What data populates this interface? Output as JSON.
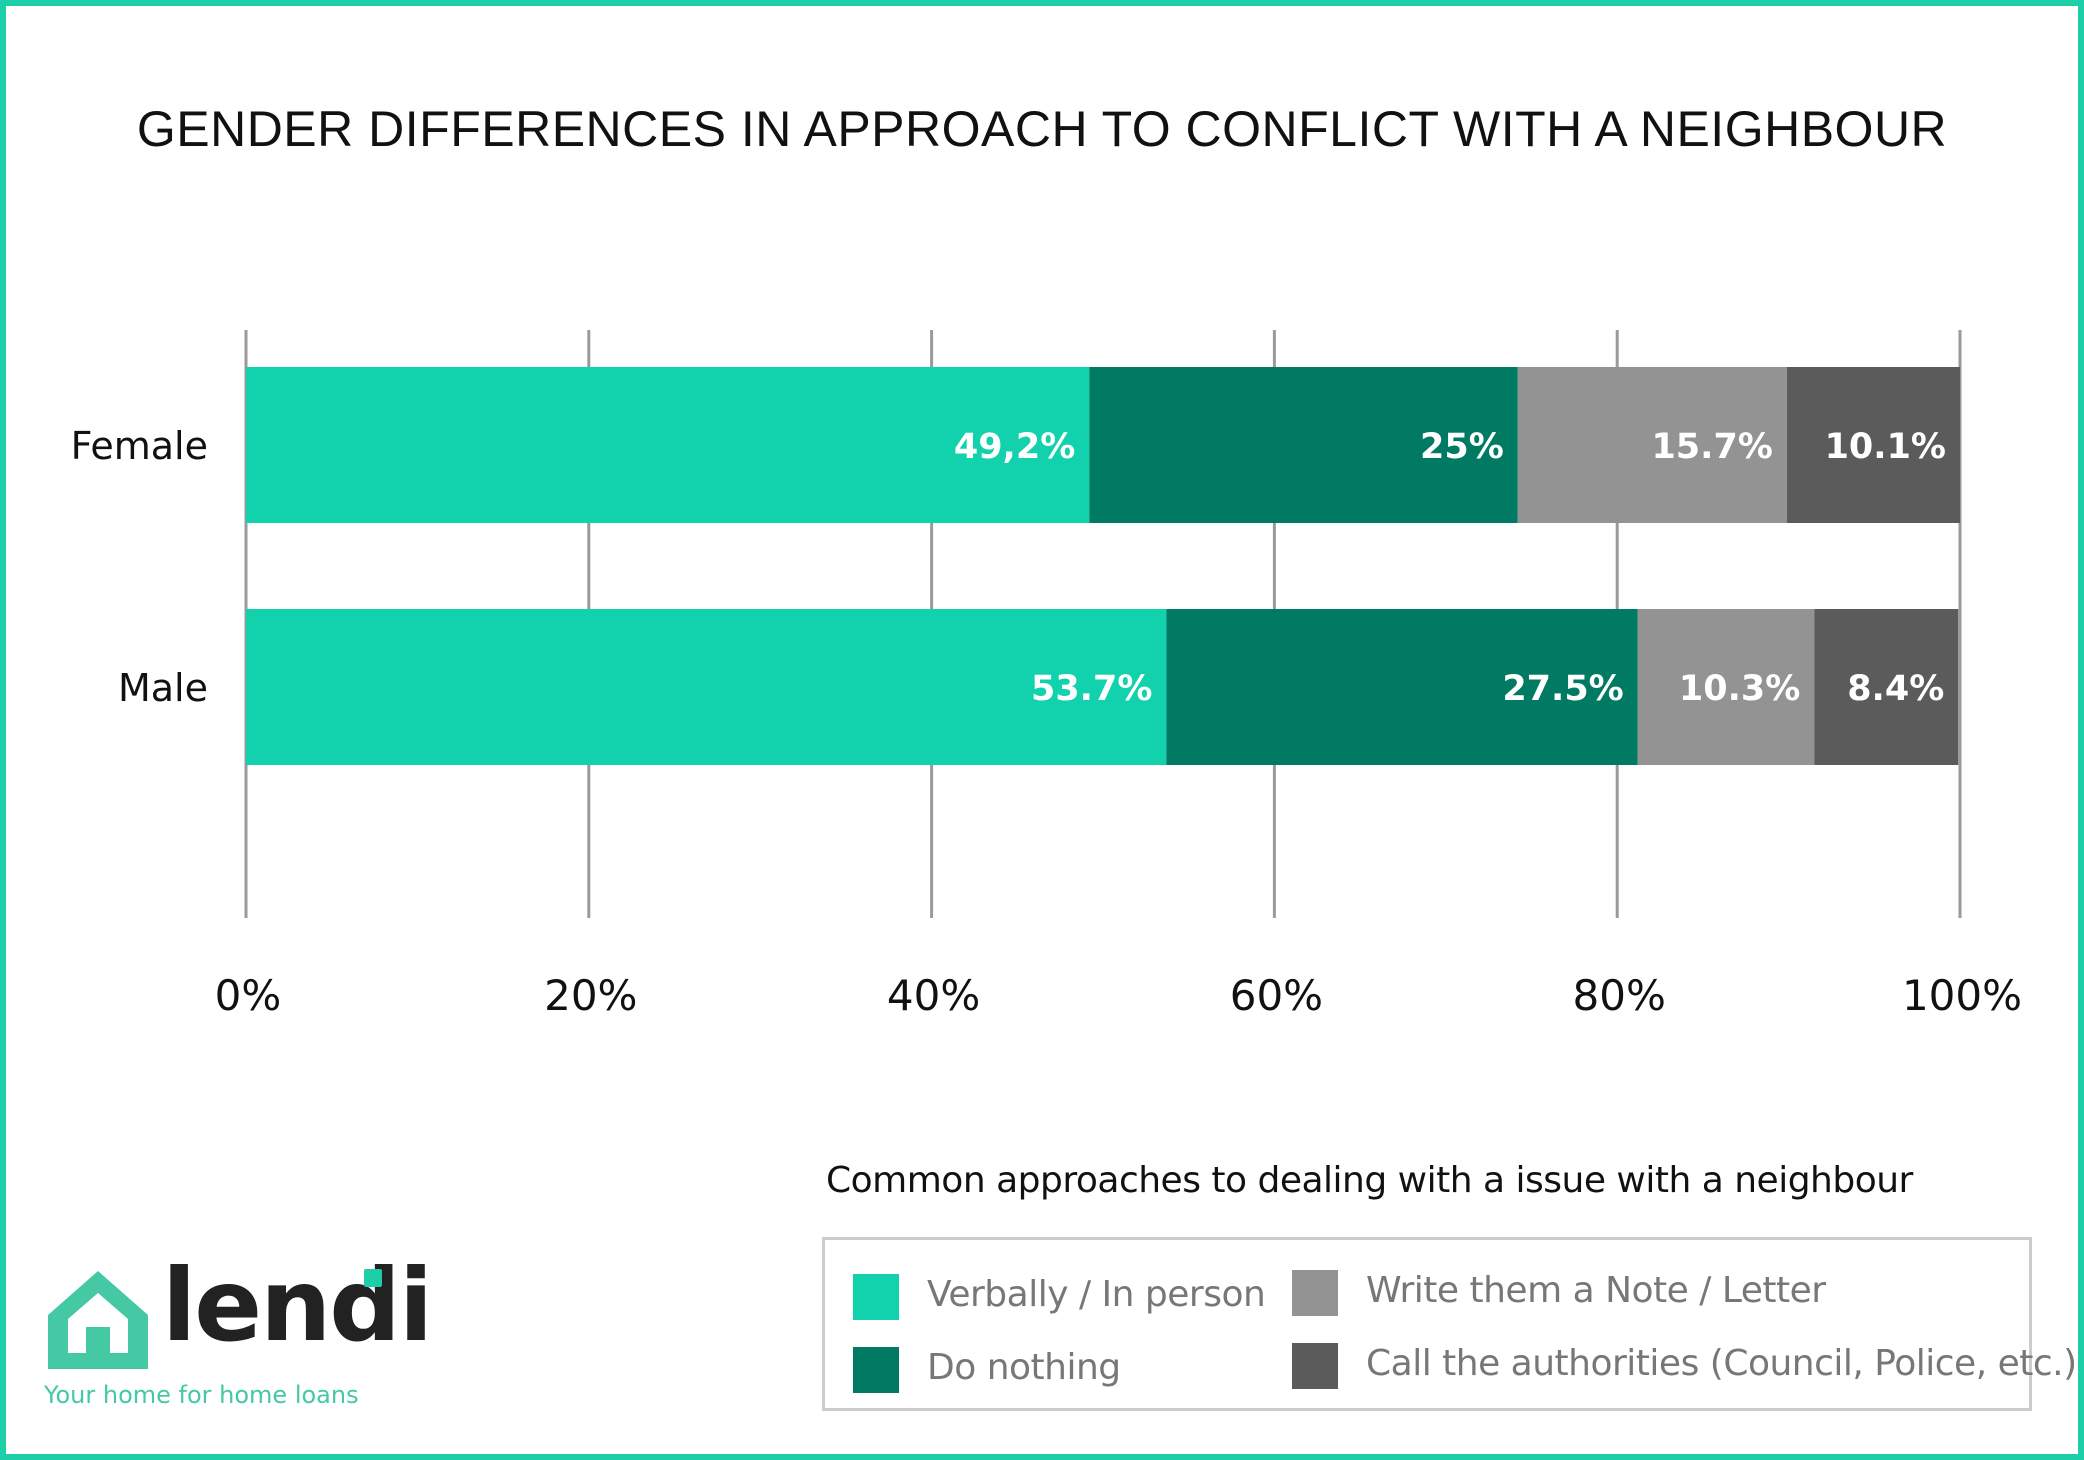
{
  "chart_data": {
    "type": "bar",
    "orientation": "horizontal",
    "stacked": true,
    "title": "GENDER DIFFERENCES IN APPROACH TO CONFLICT WITH A NEIGHBOUR",
    "categories": [
      "Female",
      "Male"
    ],
    "xlim": [
      0,
      100
    ],
    "xticks": [
      0,
      20,
      40,
      60,
      80,
      100
    ],
    "xtick_labels": [
      "0%",
      "20%",
      "40%",
      "60%",
      "80%",
      "100%"
    ],
    "grid": true,
    "series": [
      {
        "name": "Verbally / In person",
        "color": "#12d2ae",
        "values": [
          49.2,
          53.7
        ],
        "labels": [
          "49,2%",
          "53.7%"
        ]
      },
      {
        "name": "Do nothing",
        "color": "#007a63",
        "values": [
          25,
          27.5
        ],
        "labels": [
          "25%",
          "27.5%"
        ]
      },
      {
        "name": "Write them a Note / Letter",
        "color": "#939393",
        "values": [
          15.7,
          10.3
        ],
        "labels": [
          "15.7%",
          "10.3%"
        ]
      },
      {
        "name": "Call the authorities (Council, Police, etc.)",
        "color": "#5b5b5b",
        "values": [
          10.1,
          8.4
        ],
        "labels": [
          "10.1%",
          "8.4%"
        ]
      }
    ],
    "legend_title": "Common approaches to dealing with a issue with a neighbour",
    "legend_position": "bottom-right"
  },
  "logo": {
    "name": "lendi",
    "tagline": "Your home for home loans",
    "color": "#45c9a5"
  },
  "colors": {
    "frame": "#1ccfa8",
    "gridline": "#9a9a9a"
  }
}
